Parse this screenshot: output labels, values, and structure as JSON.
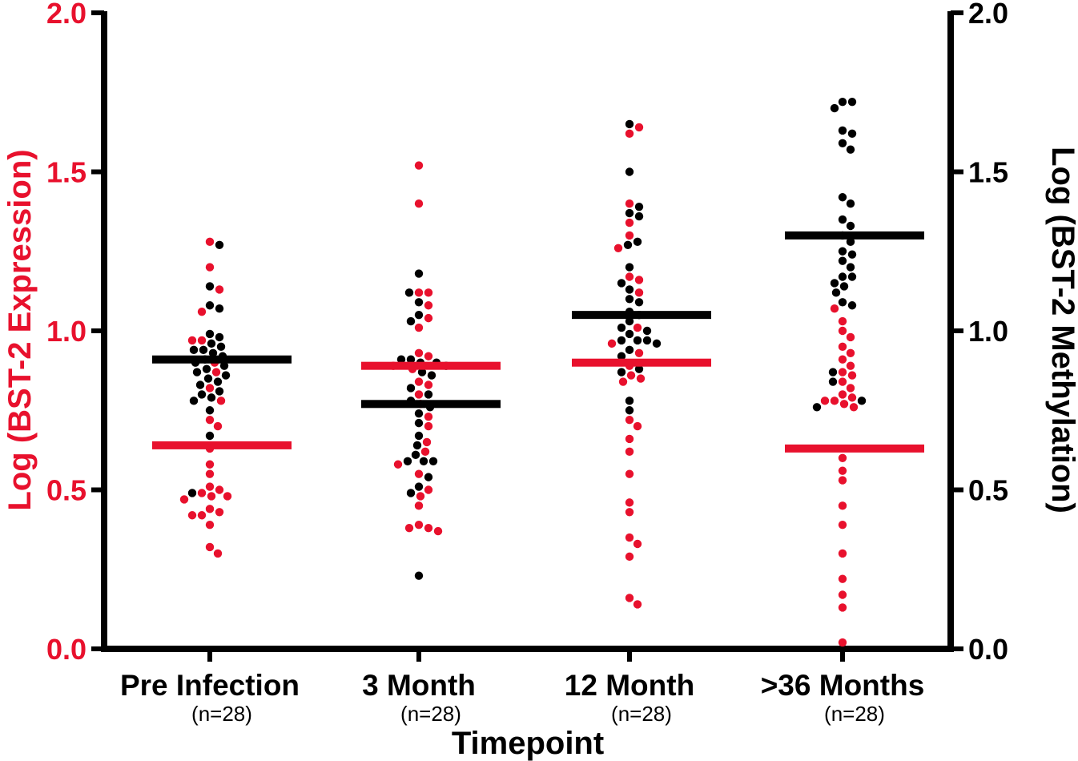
{
  "chart_data": {
    "type": "scatter",
    "title": "",
    "xlabel": "Timepoint",
    "ylabel_left": "Log (BST-2 Expression)",
    "ylabel_right": "Log (BST-2 Methylation)",
    "ylim": [
      0,
      2.0
    ],
    "yticks_left": [
      "0.0",
      "0.5",
      "1.0",
      "1.5",
      "2.0"
    ],
    "yticks_right": [
      "0.0",
      "0.5",
      "1.0",
      "1.5",
      "2.0"
    ],
    "categories": [
      "Pre Infection",
      "3 Month",
      "12 Month",
      ">36 Months"
    ],
    "sample_sizes": [
      "(n=28)",
      "(n=28)",
      "(n=28)",
      "(n=28)"
    ],
    "colors": {
      "expression": "#e8112d",
      "methylation": "#000000"
    },
    "series": [
      {
        "name": "BST-2 Expression",
        "axis": "left",
        "color": "#e8112d",
        "means": [
          0.64,
          0.89,
          0.9,
          0.63
        ],
        "points": [
          [
            1.28,
            1.2,
            1.13,
            1.06,
            0.97,
            0.97,
            0.9,
            0.87,
            0.82,
            0.78,
            0.72,
            0.7,
            0.63,
            0.58,
            0.55,
            0.51,
            0.5,
            0.49,
            0.48,
            0.48,
            0.47,
            0.44,
            0.43,
            0.42,
            0.42,
            0.39,
            0.32,
            0.3
          ],
          [
            1.52,
            1.4,
            1.12,
            1.12,
            1.08,
            1.04,
            1.01,
            0.93,
            0.92,
            0.89,
            0.88,
            0.84,
            0.83,
            0.8,
            0.77,
            0.73,
            0.7,
            0.65,
            0.62,
            0.58,
            0.55,
            0.5,
            0.48,
            0.45,
            0.39,
            0.38,
            0.38,
            0.37
          ],
          [
            1.64,
            1.62,
            1.4,
            1.34,
            1.3,
            1.26,
            1.17,
            1.16,
            1.12,
            1.01,
            0.96,
            0.93,
            0.89,
            0.86,
            0.85,
            0.84,
            0.72,
            0.46,
            0.43,
            0.35,
            0.33,
            0.29,
            0.16,
            0.14,
            0.62,
            0.66,
            0.7,
            0.55
          ],
          [
            1.07,
            1.03,
            0.95,
            0.93,
            0.89,
            0.87,
            0.86,
            0.82,
            0.8,
            0.79,
            0.78,
            0.78,
            0.77,
            0.76,
            0.56,
            0.53,
            0.39,
            0.22,
            0.17,
            0.13,
            0.02,
            0.98,
            1.0,
            0.91,
            0.84,
            0.6,
            0.45,
            0.3
          ]
        ]
      },
      {
        "name": "BST-2 Methylation",
        "axis": "right",
        "color": "#000000",
        "means": [
          0.91,
          0.77,
          1.05,
          1.3
        ],
        "points": [
          [
            1.27,
            1.14,
            1.08,
            1.07,
            0.99,
            0.98,
            0.95,
            0.94,
            0.94,
            0.93,
            0.92,
            0.9,
            0.88,
            0.87,
            0.84,
            0.81,
            0.8,
            0.79,
            0.78,
            0.75,
            0.67,
            0.49,
            0.96,
            0.86,
            0.83,
            0.91,
            0.89,
            0.85
          ],
          [
            1.18,
            1.12,
            1.09,
            1.05,
            1.03,
            0.91,
            0.91,
            0.9,
            0.9,
            0.86,
            0.82,
            0.78,
            0.76,
            0.74,
            0.71,
            0.67,
            0.64,
            0.61,
            0.59,
            0.59,
            0.59,
            0.54,
            0.51,
            0.49,
            0.23,
            0.87,
            0.89,
            0.8
          ],
          [
            1.65,
            1.5,
            1.39,
            1.37,
            1.36,
            1.28,
            1.27,
            1.2,
            1.15,
            1.13,
            1.09,
            1.06,
            1.05,
            1.03,
            1.0,
            0.99,
            0.97,
            0.97,
            0.97,
            0.96,
            0.92,
            0.88,
            0.87,
            0.78,
            0.75,
            1.1,
            1.01,
            0.94
          ],
          [
            1.72,
            1.72,
            1.7,
            1.63,
            1.62,
            1.59,
            1.57,
            1.42,
            1.4,
            1.35,
            1.33,
            1.3,
            1.28,
            1.25,
            1.22,
            1.2,
            1.17,
            1.17,
            1.15,
            1.14,
            1.12,
            1.09,
            1.08,
            0.87,
            0.84,
            0.78,
            0.76,
            1.24
          ]
        ]
      }
    ]
  }
}
